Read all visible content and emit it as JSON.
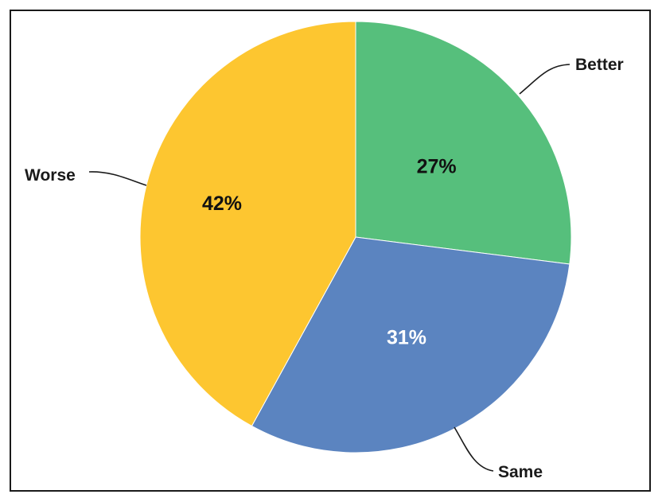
{
  "chart_data": {
    "type": "pie",
    "title": "",
    "slices": [
      {
        "label": "Better",
        "value": 27,
        "display": "27%",
        "color": "#56bf7c",
        "text_color": "#111111"
      },
      {
        "label": "Same",
        "value": 31,
        "display": "31%",
        "color": "#5b84c0",
        "text_color": "#ffffff"
      },
      {
        "label": "Worse",
        "value": 42,
        "display": "42%",
        "color": "#fdc630",
        "text_color": "#111111"
      }
    ],
    "start": "12 o'clock",
    "direction": "clockwise",
    "legend": "none (callout labels)"
  }
}
